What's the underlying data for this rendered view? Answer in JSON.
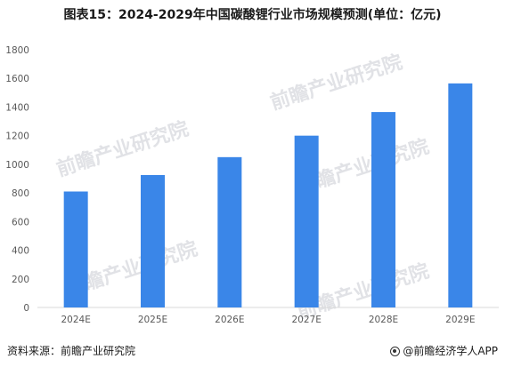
{
  "title": "图表15：2024-2029年中国碳酸锂行业市场规模预测(单位：亿元)",
  "footer": {
    "source": "资料来源：前瞻产业研究院",
    "brand": "@前瞻经济学人APP"
  },
  "watermark": "前瞻产业研究院",
  "colors": {
    "bar": "#3a86e8",
    "axis": "#d9d9d9",
    "tick_text": "#595959"
  },
  "chart_data": {
    "type": "bar",
    "title": "图表15：2024-2029年中国碳酸锂行业市场规模预测(单位：亿元)",
    "xlabel": "",
    "ylabel": "",
    "categories": [
      "2024E",
      "2025E",
      "2026E",
      "2027E",
      "2028E",
      "2029E"
    ],
    "values": [
      810,
      925,
      1050,
      1200,
      1365,
      1565
    ],
    "ylim": [
      0,
      1800
    ],
    "yticks": [
      0,
      200,
      400,
      600,
      800,
      1000,
      1200,
      1400,
      1600,
      1800
    ],
    "grid": false,
    "legend": "none"
  }
}
